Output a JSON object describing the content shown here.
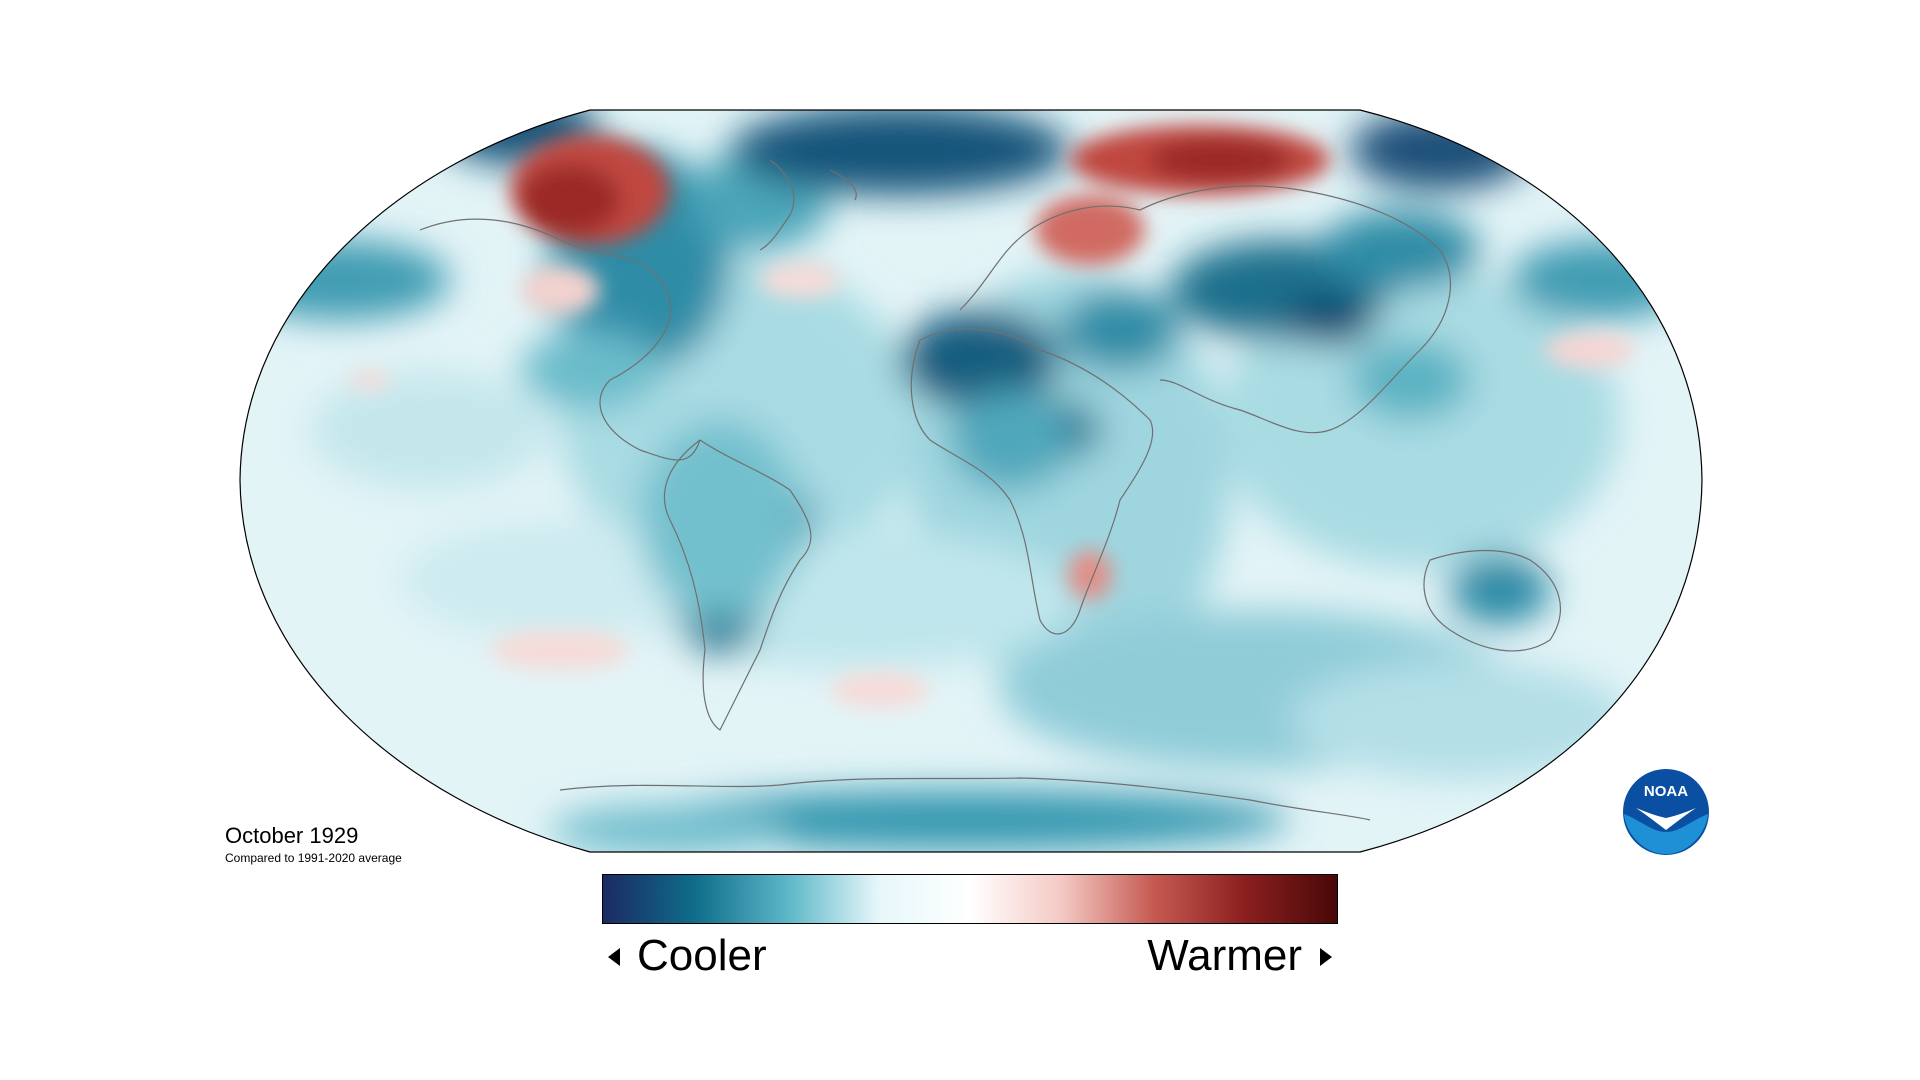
{
  "caption": {
    "title": "October 1929",
    "subtitle": "Compared to 1991-2020 average"
  },
  "legend": {
    "cooler_label": "Cooler",
    "warmer_label": "Warmer",
    "gradient_colors": [
      "#1b2a63",
      "#0f6d8a",
      "#5bb6c7",
      "#e6f7fa",
      "#ffffff",
      "#f4c9c4",
      "#c65a52",
      "#8a1f1f",
      "#4a0808"
    ]
  },
  "logo": {
    "text": "NOAA",
    "colors": {
      "outer": "#0b4fa3",
      "inner": "#1e90d6",
      "bird": "#ffffff"
    }
  },
  "map": {
    "background_color": "#dff1f5",
    "outline_color": "#000000",
    "coastline_color": "#707070"
  }
}
